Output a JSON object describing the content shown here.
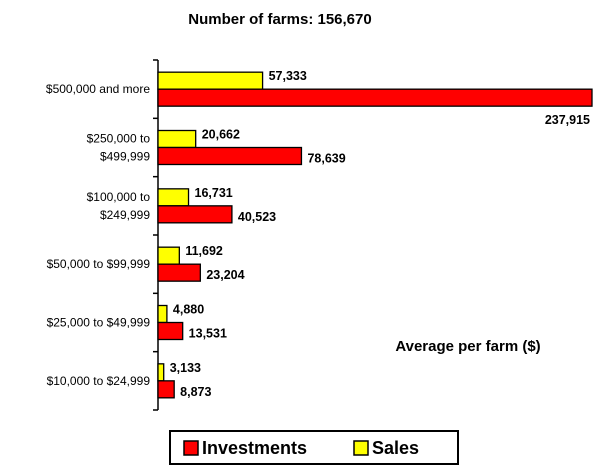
{
  "chart_data": {
    "type": "bar",
    "orientation": "horizontal",
    "title": "Number of farms: 156,670",
    "annotation": "Average per farm ($)",
    "categories": [
      [
        "$500,000 and more"
      ],
      [
        "$250,000 to",
        "$499,999"
      ],
      [
        "$100,000 to",
        "$249,999"
      ],
      [
        "$50,000 to $99,999"
      ],
      [
        "$25,000 to $49,999"
      ],
      [
        "$10,000 to $24,999"
      ]
    ],
    "series": [
      {
        "name": "Sales",
        "color": "#ffff00",
        "values": [
          57333,
          20662,
          16731,
          11692,
          4880,
          3133
        ],
        "labels": [
          "57,333",
          "20,662",
          "16,731",
          "11,692",
          "4,880",
          "3,133"
        ]
      },
      {
        "name": "Investments",
        "color": "#ff0000",
        "values": [
          237915,
          78639,
          40523,
          23204,
          13531,
          8873
        ],
        "labels": [
          "237,915",
          "78,639",
          "40,523",
          "23,204",
          "13,531",
          "8,873"
        ]
      }
    ],
    "xlim": [
      0,
      237915
    ],
    "legend": {
      "placement": "bottom",
      "order": [
        "Investments",
        "Sales"
      ]
    }
  }
}
